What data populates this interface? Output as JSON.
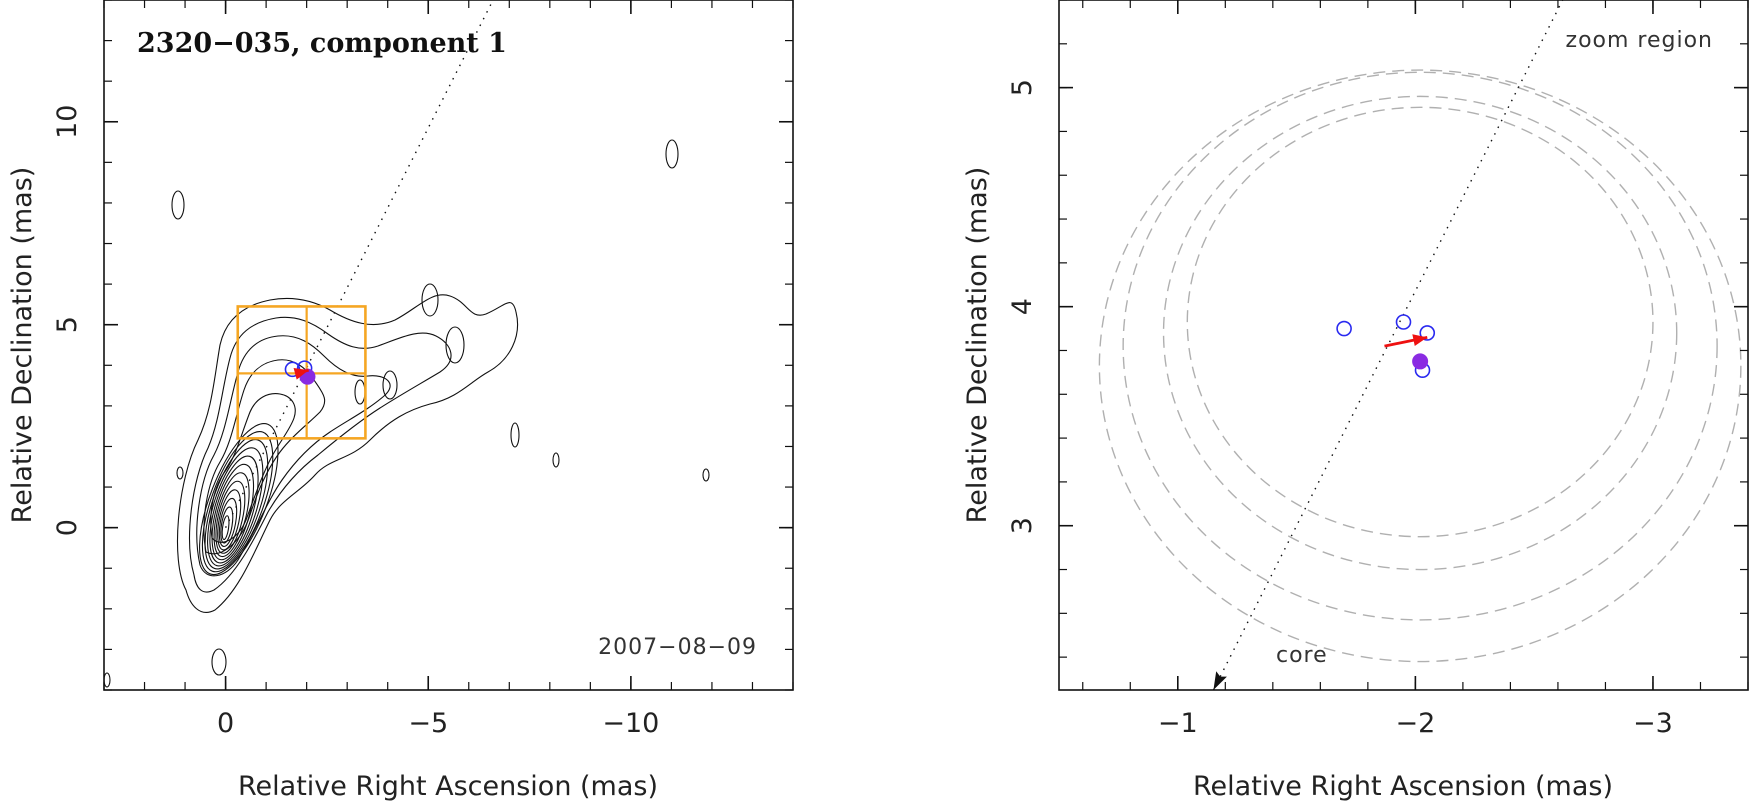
{
  "chart_data": [
    {
      "type": "scatter",
      "panel": "left",
      "title": "2320−035, component 1",
      "date_label": "2007−08−09",
      "xlabel": "Relative Right Ascension (mas)",
      "ylabel": "Relative Declination (mas)",
      "xlim": [
        3,
        -14
      ],
      "ylim": [
        -4,
        13
      ],
      "x_axis_reversed": true,
      "xticks": [
        {
          "value": 0,
          "label": "0"
        },
        {
          "value": -5,
          "label": "−5"
        },
        {
          "value": -10,
          "label": "−10"
        }
      ],
      "yticks": [
        {
          "value": 0,
          "label": "0"
        },
        {
          "value": 5,
          "label": "5"
        },
        {
          "value": 10,
          "label": "10"
        }
      ],
      "grid": false,
      "jet_axis": {
        "style": "dotted",
        "from": [
          0,
          0
        ],
        "to": [
          -6.6,
          13
        ]
      },
      "contour_peak": [
        0,
        0
      ],
      "contour_levels": 12,
      "zoom_box": {
        "x": [
          -0.3,
          -3.45
        ],
        "y": [
          2.2,
          5.45
        ],
        "divider_x": -2.0,
        "divider_y": 3.8,
        "color": "#f5a623"
      },
      "points": [
        {
          "x": -1.65,
          "y": 3.9,
          "kind": "open",
          "color": "#2a2af0"
        },
        {
          "x": -1.95,
          "y": 3.93,
          "kind": "open",
          "color": "#2a2af0"
        },
        {
          "x": -2.02,
          "y": 3.72,
          "kind": "filled",
          "color": "#8a2be2"
        }
      ],
      "arrow": {
        "from": [
          -1.75,
          3.8
        ],
        "to": [
          -2.05,
          3.88
        ],
        "color": "#ee1111"
      }
    },
    {
      "type": "scatter",
      "panel": "right",
      "zoom_label": "zoom region",
      "core_label": "core",
      "xlabel": "Relative Right Ascension (mas)",
      "ylabel": "Relative Declination (mas)",
      "xlim": [
        -0.5,
        -3.4
      ],
      "ylim": [
        2.25,
        5.4
      ],
      "x_axis_reversed": true,
      "xticks": [
        {
          "value": -1,
          "label": "−1"
        },
        {
          "value": -2,
          "label": "−2"
        },
        {
          "value": -3,
          "label": "−3"
        }
      ],
      "yticks": [
        {
          "value": 3,
          "label": "3"
        },
        {
          "value": 4,
          "label": "4"
        },
        {
          "value": 5,
          "label": "5"
        }
      ],
      "grid": false,
      "jet_axis": {
        "style": "dotted",
        "from": [
          -1.15,
          2.25
        ],
        "to": [
          -2.62,
          5.4
        ],
        "arrowhead_at_start": true
      },
      "points": [
        {
          "x": -1.7,
          "y": 3.9,
          "kind": "open",
          "color": "#2a2af0"
        },
        {
          "x": -1.95,
          "y": 3.93,
          "kind": "open",
          "color": "#2a2af0"
        },
        {
          "x": -2.05,
          "y": 3.88,
          "kind": "open",
          "color": "#2a2af0"
        },
        {
          "x": -2.03,
          "y": 3.71,
          "kind": "open",
          "color": "#2a2af0"
        },
        {
          "x": -2.02,
          "y": 3.75,
          "kind": "filled",
          "color": "#8a2be2"
        }
      ],
      "arrow": {
        "from": [
          -1.87,
          3.82
        ],
        "to": [
          -2.05,
          3.86
        ],
        "color": "#ee1111"
      },
      "uncertainty_circles": [
        {
          "cx": -2.02,
          "cy": 3.73,
          "r": 1.35
        },
        {
          "cx": -2.02,
          "cy": 3.82,
          "r": 1.25
        },
        {
          "cx": -2.02,
          "cy": 3.88,
          "r": 1.08
        },
        {
          "cx": -2.02,
          "cy": 3.93,
          "r": 0.98
        }
      ],
      "circle_color": "#b0b0b0"
    }
  ]
}
